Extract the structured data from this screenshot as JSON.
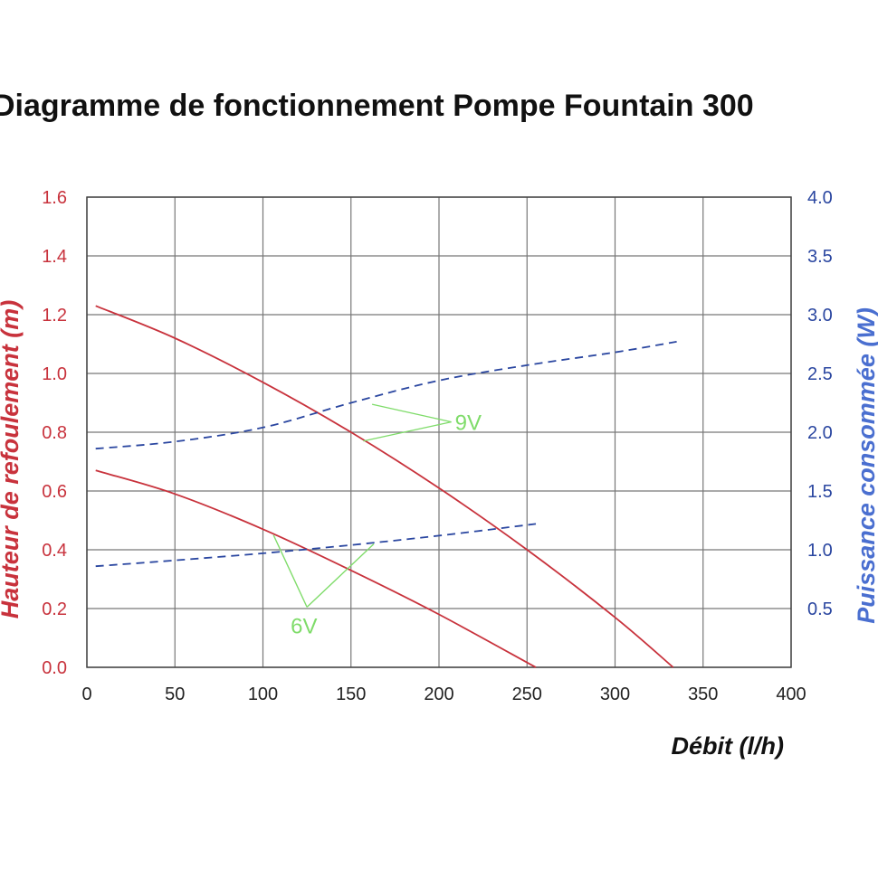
{
  "chart_data": {
    "type": "line",
    "title": "Diagramme de fonctionnement Pompe Fountain 300",
    "xlabel": "Débit (l/h)",
    "ylabel_left": "Hauteur de refoulement (m)",
    "ylabel_right": "Puissance consommée (W)",
    "xlim": [
      0,
      400
    ],
    "ylim_left": [
      0,
      1.6
    ],
    "ylim_right": [
      0,
      4.0
    ],
    "x_ticks": [
      "0",
      "50",
      "100",
      "150",
      "200",
      "250",
      "300",
      "350",
      "400"
    ],
    "y_left_ticks": [
      "0.0",
      "0.2",
      "0.4",
      "0.6",
      "0.8",
      "1.0",
      "1.2",
      "1.4",
      "1.6"
    ],
    "y_right_ticks": [
      "0.5",
      "1.0",
      "1.5",
      "2.0",
      "2.5",
      "3.0",
      "3.5",
      "4.0"
    ],
    "grid": true,
    "colors": {
      "head": "#c8323c",
      "power": "#2a46a0",
      "annotation": "#7fdc6a",
      "grid": "#777777"
    },
    "series": [
      {
        "axis": "left",
        "style": "solid",
        "x": [
          5,
          50,
          100,
          150,
          200,
          250,
          300,
          333
        ],
        "y": [
          1.23,
          1.12,
          0.97,
          0.8,
          0.61,
          0.4,
          0.17,
          0.0
        ]
      },
      {
        "axis": "left",
        "style": "solid",
        "x": [
          5,
          50,
          100,
          150,
          200,
          255
        ],
        "y": [
          0.67,
          0.59,
          0.47,
          0.33,
          0.18,
          0.0
        ]
      },
      {
        "axis": "right",
        "style": "dashed",
        "x": [
          5,
          50,
          100,
          150,
          200,
          250,
          300,
          335
        ],
        "y": [
          1.86,
          1.92,
          2.04,
          2.25,
          2.44,
          2.57,
          2.68,
          2.77
        ]
      },
      {
        "axis": "right",
        "style": "dashed",
        "x": [
          5,
          50,
          100,
          150,
          200,
          255
        ],
        "y": [
          0.86,
          0.91,
          0.97,
          1.04,
          1.12,
          1.22
        ]
      }
    ],
    "annotations": [
      {
        "text": "9V",
        "x": 207,
        "y_left": 0.835,
        "targets": [
          {
            "x": 162,
            "y_left": 0.895
          },
          {
            "x": 157,
            "y_left": 0.77
          }
        ]
      },
      {
        "text": "6V",
        "x": 125,
        "y_left": 0.205,
        "targets": [
          {
            "x": 106,
            "y_left": 0.45
          },
          {
            "x": 163,
            "y_left": 0.42
          }
        ]
      }
    ]
  }
}
